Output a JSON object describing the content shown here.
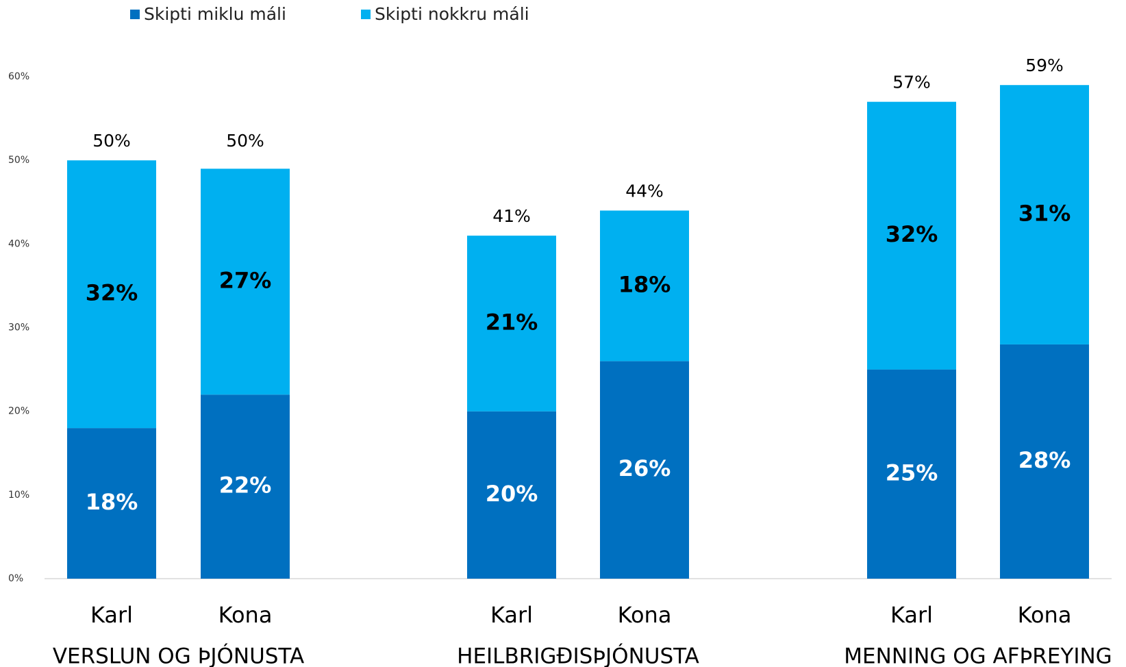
{
  "chart_data": {
    "type": "stacked_bar",
    "categories": [
      "Karl",
      "Kona",
      "Karl",
      "Kona",
      "Karl",
      "Kona"
    ],
    "groups": [
      "VERSLUN OG ÞJÓNUSTA",
      "HEILBRIGÐISÞJÓNUSTA",
      "MENNING OG AFÞREYING"
    ],
    "series": [
      {
        "name": "Skipti miklu máli",
        "color": "#0070c0",
        "label_color": "#ffffff",
        "values": [
          18,
          22,
          20,
          26,
          25,
          28
        ],
        "value_labels": [
          "18%",
          "22%",
          "20%",
          "26%",
          "25%",
          "28%"
        ]
      },
      {
        "name": "Skipti nokkru máli",
        "color": "#00b0f0",
        "label_color": "#000000",
        "values": [
          32,
          27,
          21,
          18,
          32,
          31
        ],
        "value_labels": [
          "32%",
          "27%",
          "21%",
          "18%",
          "32%",
          "31%"
        ]
      }
    ],
    "totals": [
      50,
      50,
      41,
      44,
      57,
      59
    ],
    "total_labels": [
      "50%",
      "50%",
      "41%",
      "44%",
      "57%",
      "59%"
    ],
    "ylim": [
      0,
      60
    ],
    "yticks": [
      {
        "value": 0,
        "label": "0%"
      },
      {
        "value": 10,
        "label": "10%"
      },
      {
        "value": 20,
        "label": "20%"
      },
      {
        "value": 30,
        "label": "30%"
      },
      {
        "value": 40,
        "label": "40%"
      },
      {
        "value": 50,
        "label": "50%"
      },
      {
        "value": 60,
        "label": "60%"
      }
    ],
    "legend": "top-left"
  }
}
